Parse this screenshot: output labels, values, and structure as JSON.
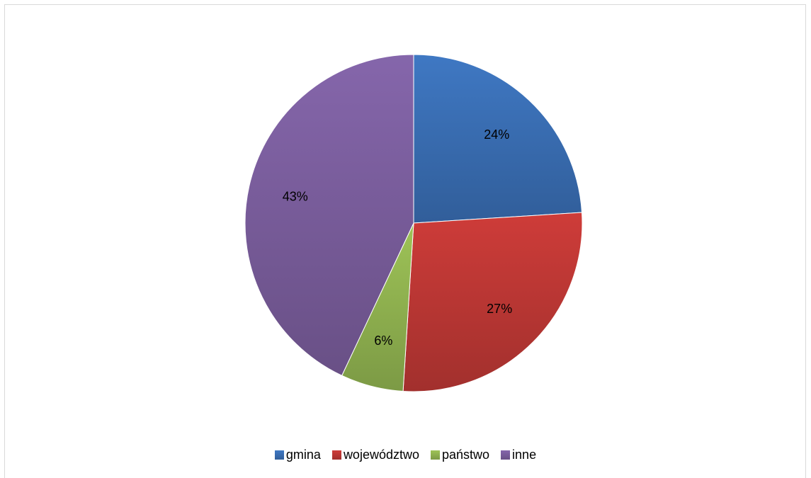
{
  "chart_data": {
    "type": "pie",
    "categories": [
      "gmina",
      "województwo",
      "państwo",
      "inne"
    ],
    "values": [
      24,
      27,
      6,
      43
    ],
    "labels": [
      "24%",
      "27%",
      "6%",
      "43%"
    ],
    "colors": [
      "#3a6fb5",
      "#bf3835",
      "#92b551",
      "#7b5e9e"
    ],
    "legend_position": "bottom"
  }
}
